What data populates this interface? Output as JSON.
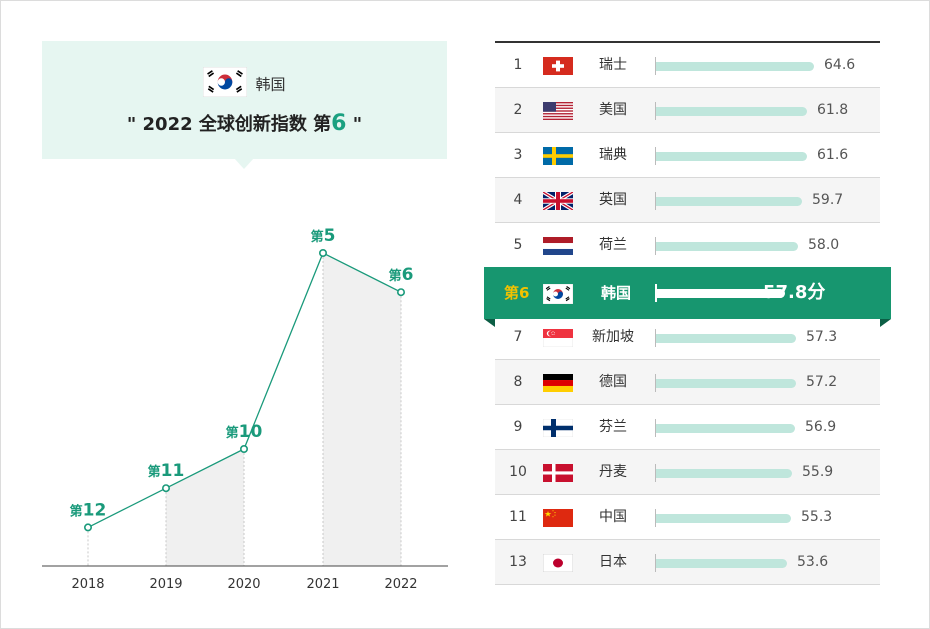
{
  "header": {
    "country": "韩国",
    "title_prefix": "\" 2022 全球创新指数 第",
    "title_rank": "6",
    "title_suffix": " \""
  },
  "chart_data": [
    {
      "type": "line",
      "x": [
        "2018",
        "2019",
        "2020",
        "2021",
        "2022"
      ],
      "series": [
        {
          "values": [
            12,
            11,
            10,
            5,
            6
          ]
        }
      ],
      "point_labels": [
        {
          "prefix": "第",
          "num": "12"
        },
        {
          "prefix": "第",
          "num": "11"
        },
        {
          "prefix": "第",
          "num": "10"
        },
        {
          "prefix": "第",
          "num": "5"
        },
        {
          "prefix": "第",
          "num": "6"
        }
      ],
      "y_reversed": true,
      "grid": false
    },
    {
      "type": "bar",
      "orientation": "horizontal",
      "categories": [
        "瑞士",
        "美国",
        "瑞典",
        "英国",
        "荷兰",
        "韩国",
        "新加坡",
        "德国",
        "芬兰",
        "丹麦",
        "中国",
        "日本"
      ],
      "values": [
        64.6,
        61.8,
        61.6,
        59.7,
        58.0,
        57.8,
        57.3,
        57.2,
        56.9,
        55.9,
        55.3,
        53.6
      ]
    }
  ],
  "ranking": {
    "rows": [
      {
        "rank": "1",
        "name": "瑞士",
        "value": "64.6",
        "flag": "switzerland-flag"
      },
      {
        "rank": "2",
        "name": "美国",
        "value": "61.8",
        "flag": "usa-flag"
      },
      {
        "rank": "3",
        "name": "瑞典",
        "value": "61.6",
        "flag": "sweden-flag"
      },
      {
        "rank": "4",
        "name": "英国",
        "value": "59.7",
        "flag": "uk-flag"
      },
      {
        "rank": "5",
        "name": "荷兰",
        "value": "58.0",
        "flag": "netherlands-flag"
      },
      {
        "rank": "第6",
        "name": "韩国",
        "value": "57.8分",
        "flag": "korea-flag",
        "highlight": true
      },
      {
        "rank": "7",
        "name": "新加坡",
        "value": "57.3",
        "flag": "singapore-flag"
      },
      {
        "rank": "8",
        "name": "德国",
        "value": "57.2",
        "flag": "germany-flag"
      },
      {
        "rank": "9",
        "name": "芬兰",
        "value": "56.9",
        "flag": "finland-flag"
      },
      {
        "rank": "10",
        "name": "丹麦",
        "value": "55.9",
        "flag": "denmark-flag"
      },
      {
        "rank": "11",
        "name": "中国",
        "value": "55.3",
        "flag": "china-flag"
      },
      {
        "rank": "13",
        "name": "日本",
        "value": "53.6",
        "flag": "japan-flag"
      }
    ]
  },
  "colors": {
    "accent": "#17966f",
    "line": "#1a9a7b",
    "bar": "#bfe6dc",
    "header_bg": "#e6f6f1",
    "rank_highlight": "#f2c200"
  }
}
